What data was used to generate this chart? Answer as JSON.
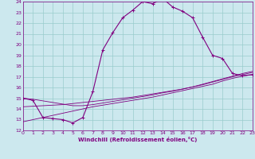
{
  "xlabel": "Windchill (Refroidissement éolien,°C)",
  "bg_color": "#cce8ee",
  "line_color": "#800080",
  "grid_color": "#99cccc",
  "xlim": [
    0,
    23
  ],
  "ylim": [
    12,
    24
  ],
  "xticks": [
    0,
    1,
    2,
    3,
    4,
    5,
    6,
    7,
    8,
    9,
    10,
    11,
    12,
    13,
    14,
    15,
    16,
    17,
    18,
    19,
    20,
    21,
    22,
    23
  ],
  "yticks": [
    12,
    13,
    14,
    15,
    16,
    17,
    18,
    19,
    20,
    21,
    22,
    23,
    24
  ],
  "hours": [
    0,
    1,
    2,
    3,
    4,
    5,
    6,
    7,
    8,
    9,
    10,
    11,
    12,
    13,
    14,
    15,
    16,
    17,
    18,
    19,
    20,
    21,
    22,
    23
  ],
  "main_line": [
    15.0,
    14.8,
    13.2,
    13.1,
    13.0,
    12.7,
    13.2,
    15.6,
    19.5,
    21.1,
    22.5,
    23.2,
    24.0,
    23.8,
    24.3,
    23.5,
    23.1,
    22.5,
    20.7,
    19.0,
    18.7,
    17.3,
    17.1,
    17.2
  ],
  "diag_line1": [
    12.8,
    13.0,
    13.2,
    13.4,
    13.6,
    13.8,
    14.0,
    14.2,
    14.35,
    14.5,
    14.65,
    14.8,
    14.95,
    15.1,
    15.3,
    15.5,
    15.7,
    15.9,
    16.1,
    16.3,
    16.6,
    16.85,
    17.05,
    17.2
  ],
  "diag_line2": [
    14.2,
    14.25,
    14.3,
    14.35,
    14.4,
    14.5,
    14.6,
    14.7,
    14.8,
    14.9,
    15.0,
    15.1,
    15.25,
    15.4,
    15.55,
    15.7,
    15.85,
    16.05,
    16.25,
    16.5,
    16.75,
    17.0,
    17.2,
    17.4
  ],
  "diag_line3": [
    15.0,
    14.9,
    14.75,
    14.6,
    14.45,
    14.3,
    14.3,
    14.4,
    14.55,
    14.7,
    14.85,
    15.0,
    15.15,
    15.3,
    15.5,
    15.65,
    15.85,
    16.05,
    16.3,
    16.55,
    16.8,
    17.05,
    17.3,
    17.5
  ]
}
